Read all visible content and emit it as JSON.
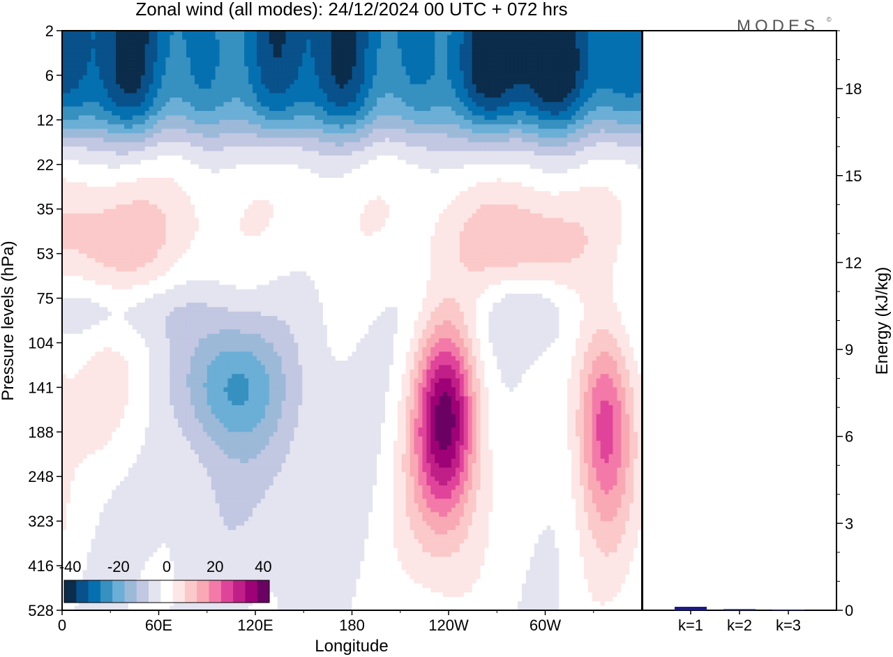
{
  "chart_data": [
    {
      "type": "heatmap",
      "title": "Zonal wind (all modes):  24/12/2024  00 UTC  + 072 hrs",
      "xlabel": "Longitude",
      "ylabel": "Pressure levels (hPa)",
      "x_ticks": [
        "0",
        "60E",
        "120E",
        "180",
        "120W",
        "60W"
      ],
      "y_ticks": [
        "2",
        "6",
        "12",
        "22",
        "35",
        "53",
        "75",
        "104",
        "141",
        "188",
        "248",
        "323",
        "416",
        "528"
      ],
      "y_scale": "log-pressure (inverted)",
      "colorbar": {
        "tick_labels": [
          "-40",
          "-20",
          "0",
          "20",
          "40"
        ],
        "min": -40,
        "max": 40,
        "step": 5,
        "colors": [
          "#0b2c4a",
          "#08518a",
          "#0570b0",
          "#3690c0",
          "#6baed6",
          "#9cb9d8",
          "#c2c7e2",
          "#e4e4f0",
          "#ffffff",
          "#fde6e6",
          "#fbc9c9",
          "#f9a9b3",
          "#f37aa8",
          "#e0449a",
          "#bf1f86",
          "#9e0276",
          "#6a0163"
        ],
        "placement": "bottom-left inset"
      },
      "features": [
        {
          "region": "upper levels 2-12 hPa, all longitudes",
          "value": -30
        },
        {
          "region": "upper levels near 300E",
          "value": -35
        },
        {
          "region": "35-53 hPa, 0-60E",
          "value": 10
        },
        {
          "region": "35-53 hPa, 270-300E",
          "value": 12
        },
        {
          "region": "104-188 hPa, 90-120E",
          "value": -20
        },
        {
          "region": "141-188 hPa, near 240E (120W)",
          "value": 35
        },
        {
          "region": "141-188 hPa, near 338E",
          "value": 25
        },
        {
          "region": "surface, most longitudes",
          "value": 0
        }
      ]
    },
    {
      "type": "bar",
      "categories": [
        "k=1",
        "k=2",
        "k=3"
      ],
      "values": [
        0.12,
        0.04,
        0.02
      ],
      "ylabel": "Energy (kJ/kg)",
      "y_ticks": [
        "0",
        "3",
        "6",
        "9",
        "12",
        "15",
        "18"
      ],
      "ylim": [
        0,
        20
      ],
      "bar_color": "#1a1a8c"
    }
  ],
  "logo": "MODES",
  "logo_mark": "©"
}
